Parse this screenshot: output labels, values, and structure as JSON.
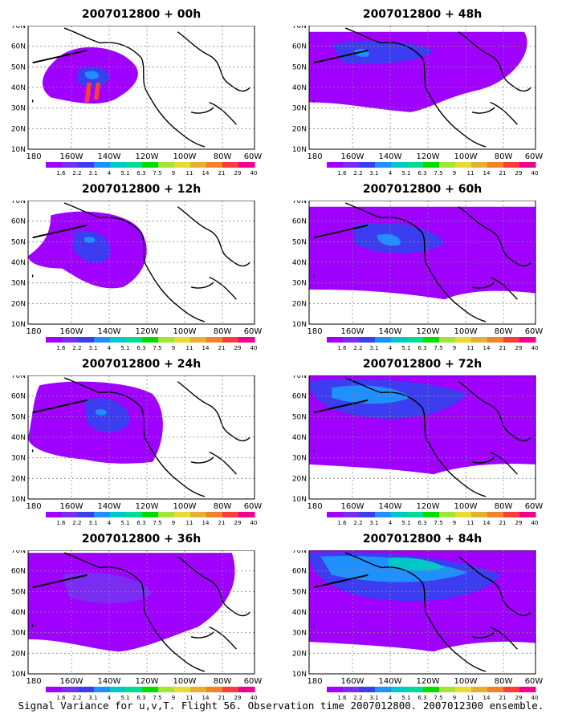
{
  "panels": [
    {
      "title": "2007012800 + 00h"
    },
    {
      "title": "2007012800 + 48h"
    },
    {
      "title": "2007012800 + 12h"
    },
    {
      "title": "2007012800 + 60h"
    },
    {
      "title": "2007012800 + 24h"
    },
    {
      "title": "2007012800 + 72h"
    },
    {
      "title": "2007012800 + 36h"
    },
    {
      "title": "2007012800 + 84h"
    }
  ],
  "lat_labels": [
    "10N",
    "20N",
    "30N",
    "40N",
    "50N",
    "60N",
    "70N"
  ],
  "lon_labels": [
    "180",
    "160W",
    "140W",
    "120W",
    "100W",
    "80W",
    "60W"
  ],
  "colorbar": {
    "labels": [
      "1.6",
      "2.2",
      "3.1",
      "4",
      "5.1",
      "6.3",
      "7.5",
      "9",
      "11",
      "14",
      "21",
      "29",
      "40"
    ],
    "colors": [
      "#a000ff",
      "#7a2cf0",
      "#3c3cf0",
      "#1e90ff",
      "#00c8c8",
      "#00dc96",
      "#00dc00",
      "#a0e632",
      "#e6dc32",
      "#e6af2d",
      "#f08228",
      "#fa3c3c",
      "#f0008c"
    ]
  },
  "caption": "Signal Variance for u,v,T. Flight 56. Observation time 2007012800. 2007012300 ensemble."
}
